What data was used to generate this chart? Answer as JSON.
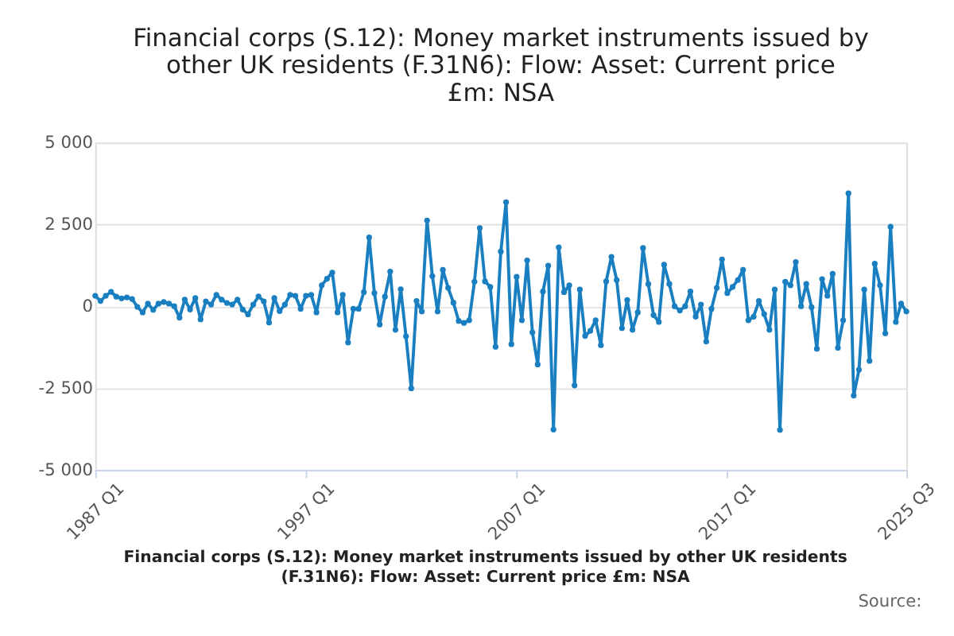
{
  "chart_data": {
    "type": "line",
    "title": "Financial corps (S.12): Money market instruments issued by other UK residents (F.31N6): Flow: Asset: Current price £m: NSA",
    "categories": [
      "1987 Q1",
      null,
      null,
      null,
      null,
      null,
      null,
      null,
      null,
      null,
      null,
      null,
      null,
      null,
      null,
      null,
      null,
      null,
      null,
      null,
      null,
      null,
      null,
      null,
      null,
      null,
      null,
      null,
      null,
      null,
      null,
      null,
      null,
      null,
      null,
      null,
      null,
      null,
      null,
      null,
      "1997 Q1",
      null,
      null,
      null,
      null,
      null,
      null,
      null,
      null,
      null,
      null,
      null,
      null,
      null,
      null,
      null,
      null,
      null,
      null,
      null,
      null,
      null,
      null,
      null,
      null,
      null,
      null,
      null,
      null,
      null,
      null,
      null,
      null,
      null,
      null,
      null,
      null,
      null,
      null,
      null,
      "2007 Q1",
      null,
      null,
      null,
      null,
      null,
      null,
      null,
      null,
      null,
      null,
      null,
      null,
      null,
      null,
      null,
      null,
      null,
      null,
      null,
      null,
      null,
      null,
      null,
      null,
      null,
      null,
      null,
      null,
      null,
      null,
      null,
      null,
      null,
      null,
      null,
      null,
      null,
      null,
      null,
      "2017 Q1",
      null,
      null,
      null,
      null,
      null,
      null,
      null,
      null,
      null,
      null,
      null,
      null,
      null,
      null,
      null,
      null,
      null,
      null,
      null,
      null,
      null,
      null,
      null,
      null,
      null,
      null,
      null,
      null,
      null,
      null,
      null,
      null,
      null,
      "2025 Q3"
    ],
    "series": [
      {
        "color": "#1a7fc1",
        "values": [
          320,
          160,
          320,
          440,
          290,
          240,
          270,
          220,
          -20,
          -190,
          80,
          -110,
          80,
          130,
          80,
          0,
          -350,
          200,
          -100,
          250,
          -400,
          150,
          50,
          350,
          200,
          100,
          50,
          200,
          -100,
          -250,
          50,
          300,
          150,
          -500,
          250,
          -150,
          50,
          350,
          320,
          -80,
          320,
          350,
          -190,
          640,
          840,
          1030,
          -190,
          350,
          -1110,
          -80,
          -80,
          430,
          2100,
          400,
          -560,
          290,
          1060,
          -720,
          520,
          -920,
          -2510,
          160,
          -160,
          2620,
          920,
          -160,
          1110,
          560,
          110,
          -450,
          -510,
          -430,
          750,
          2390,
          760,
          590,
          -1240,
          1670,
          3180,
          -1160,
          900,
          -430,
          1400,
          -800,
          -1780,
          450,
          1240,
          -3770,
          1800,
          430,
          640,
          -2420,
          510,
          -910,
          -750,
          -430,
          -1190,
          760,
          1510,
          800,
          -670,
          190,
          -720,
          -190,
          1780,
          680,
          -270,
          -480,
          1270,
          680,
          0,
          -130,
          0,
          450,
          -320,
          50,
          -1080,
          -80,
          560,
          1430,
          400,
          590,
          800,
          1110,
          -430,
          -320,
          160,
          -240,
          -720,
          510,
          -3780,
          750,
          640,
          1350,
          0,
          680,
          -30,
          -1300,
          830,
          320,
          990,
          -1270,
          -430,
          3450,
          -2730,
          -1940,
          510,
          -1670,
          1300,
          640,
          -830,
          2430,
          -480,
          80,
          -160
        ]
      }
    ],
    "ylim": [
      -5000,
      5000
    ],
    "yticks": [
      {
        "value": -5000,
        "label": "-5 000"
      },
      {
        "value": -2500,
        "label": "-2 500"
      },
      {
        "value": 0,
        "label": "0"
      },
      {
        "value": 2500,
        "label": "2 500"
      },
      {
        "value": 5000,
        "label": "5 000"
      }
    ],
    "grid": "y",
    "marker": "circle",
    "line_style": "solid",
    "annotations": [
      "Financial corps (S.12): Money market instruments issued by other UK residents (F.31N6): Flow: Asset: Current price £m: NSA",
      "Source:"
    ]
  }
}
